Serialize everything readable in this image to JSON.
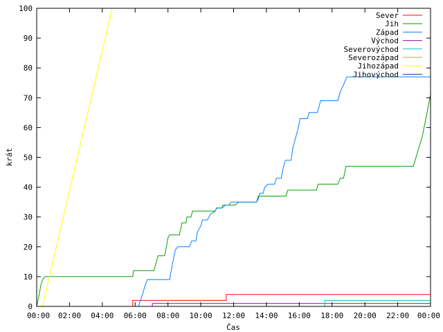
{
  "chart_data": {
    "type": "line",
    "xlabel": "Čas",
    "ylabel": "krát",
    "xlim": [
      0,
      24
    ],
    "ylim": [
      0,
      100
    ],
    "x_ticks": [
      {
        "value": 0,
        "label": "00:00"
      },
      {
        "value": 2,
        "label": "02:00"
      },
      {
        "value": 4,
        "label": "04:00"
      },
      {
        "value": 6,
        "label": "06:00"
      },
      {
        "value": 8,
        "label": "08:00"
      },
      {
        "value": 10,
        "label": "10:00"
      },
      {
        "value": 12,
        "label": "12:00"
      },
      {
        "value": 14,
        "label": "14:00"
      },
      {
        "value": 16,
        "label": "16:00"
      },
      {
        "value": 18,
        "label": "18:00"
      },
      {
        "value": 20,
        "label": "20:00"
      },
      {
        "value": 22,
        "label": "22:00"
      },
      {
        "value": 24,
        "label": "00:00"
      }
    ],
    "y_ticks": [
      {
        "value": 0,
        "label": "0"
      },
      {
        "value": 10,
        "label": "10"
      },
      {
        "value": 20,
        "label": "20"
      },
      {
        "value": 30,
        "label": "30"
      },
      {
        "value": 40,
        "label": "40"
      },
      {
        "value": 50,
        "label": "50"
      },
      {
        "value": 60,
        "label": "60"
      },
      {
        "value": 70,
        "label": "70"
      },
      {
        "value": 80,
        "label": "80"
      },
      {
        "value": 90,
        "label": "90"
      },
      {
        "value": 100,
        "label": "100"
      }
    ],
    "grid": false,
    "legend_position": "top-right",
    "series": [
      {
        "name": "Sever",
        "color": "#ff0000",
        "points": [
          [
            5.85,
            0
          ],
          [
            5.85,
            2
          ],
          [
            11.55,
            2
          ],
          [
            11.55,
            4
          ],
          [
            24,
            4
          ]
        ]
      },
      {
        "name": "Jih",
        "color": "#00a000",
        "points": [
          [
            0,
            0
          ],
          [
            0.15,
            4
          ],
          [
            0.25,
            7
          ],
          [
            0.35,
            9
          ],
          [
            0.5,
            10
          ],
          [
            5.85,
            10
          ],
          [
            5.9,
            12
          ],
          [
            7.15,
            12
          ],
          [
            7.4,
            17
          ],
          [
            7.8,
            17
          ],
          [
            8.0,
            23
          ],
          [
            8.1,
            24
          ],
          [
            8.7,
            24
          ],
          [
            8.85,
            28
          ],
          [
            9.1,
            28
          ],
          [
            9.15,
            30
          ],
          [
            9.4,
            30
          ],
          [
            9.5,
            32
          ],
          [
            10.3,
            32
          ],
          [
            10.9,
            32
          ],
          [
            10.95,
            33
          ],
          [
            11.3,
            33
          ],
          [
            11.35,
            34
          ],
          [
            12.1,
            34
          ],
          [
            12.3,
            35
          ],
          [
            13.4,
            35
          ],
          [
            13.5,
            37
          ],
          [
            15.2,
            37
          ],
          [
            15.3,
            39
          ],
          [
            17.05,
            39
          ],
          [
            17.15,
            41
          ],
          [
            18.35,
            41
          ],
          [
            18.5,
            43
          ],
          [
            18.7,
            43
          ],
          [
            18.85,
            47
          ],
          [
            22.95,
            47
          ],
          [
            23.5,
            57
          ],
          [
            24,
            71
          ]
        ]
      },
      {
        "name": "Západ",
        "color": "#0080ff",
        "points": [
          [
            6.2,
            0
          ],
          [
            6.45,
            4
          ],
          [
            6.6,
            7
          ],
          [
            6.75,
            9
          ],
          [
            8.1,
            9
          ],
          [
            8.3,
            15
          ],
          [
            8.45,
            19
          ],
          [
            8.6,
            20
          ],
          [
            9.3,
            20
          ],
          [
            9.45,
            22
          ],
          [
            9.7,
            22
          ],
          [
            9.8,
            25
          ],
          [
            10.0,
            27
          ],
          [
            10.1,
            29
          ],
          [
            10.4,
            29
          ],
          [
            10.6,
            31
          ],
          [
            10.9,
            32
          ],
          [
            10.95,
            33
          ],
          [
            11.3,
            33
          ],
          [
            11.5,
            34
          ],
          [
            11.7,
            34
          ],
          [
            11.85,
            35
          ],
          [
            13.4,
            35
          ],
          [
            13.5,
            36
          ],
          [
            13.6,
            38
          ],
          [
            13.8,
            38
          ],
          [
            13.9,
            40
          ],
          [
            14.1,
            41
          ],
          [
            14.5,
            41
          ],
          [
            14.6,
            43
          ],
          [
            14.9,
            43
          ],
          [
            15.0,
            46
          ],
          [
            15.15,
            49
          ],
          [
            15.5,
            49
          ],
          [
            15.6,
            53
          ],
          [
            15.8,
            57
          ],
          [
            15.95,
            60
          ],
          [
            16.05,
            63
          ],
          [
            16.5,
            63
          ],
          [
            16.6,
            65
          ],
          [
            17.1,
            65
          ],
          [
            17.2,
            67
          ],
          [
            17.3,
            69
          ],
          [
            18.35,
            69
          ],
          [
            18.5,
            72
          ],
          [
            18.75,
            75
          ],
          [
            18.9,
            77
          ],
          [
            24,
            77
          ]
        ]
      },
      {
        "name": "Východ",
        "color": "#a000a0",
        "points": [
          [
            7.05,
            0
          ],
          [
            7.05,
            1
          ],
          [
            24,
            1
          ]
        ]
      },
      {
        "name": "Severovýchod",
        "color": "#00c0c0",
        "points": [
          [
            17.55,
            0
          ],
          [
            17.55,
            2
          ],
          [
            24,
            2
          ]
        ]
      },
      {
        "name": "Severozápad",
        "color": "#c0a040",
        "points": []
      },
      {
        "name": "Jihozápad",
        "color": "#ffff00",
        "points": [
          [
            0.35,
            0
          ],
          [
            4.6,
            100
          ]
        ]
      },
      {
        "name": "Jihovýchod",
        "color": "#0040a0",
        "points": []
      }
    ]
  }
}
